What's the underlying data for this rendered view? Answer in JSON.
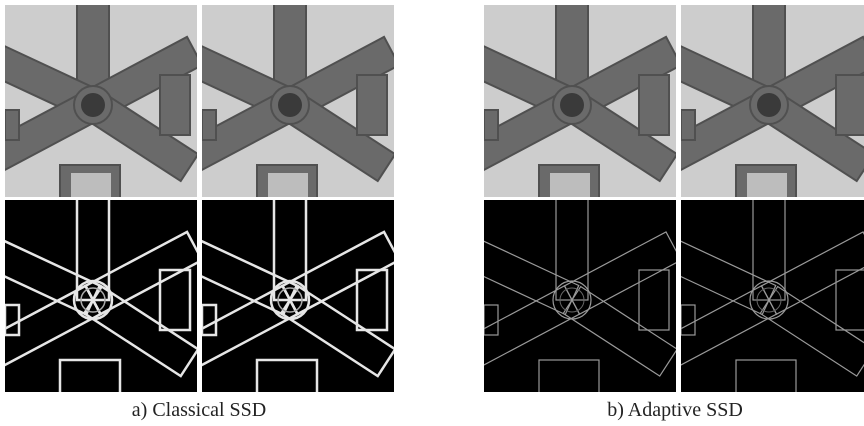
{
  "panels": [
    {
      "caption": "a) Classical SSD"
    },
    {
      "caption": "b) Adaptive SSD"
    }
  ]
}
